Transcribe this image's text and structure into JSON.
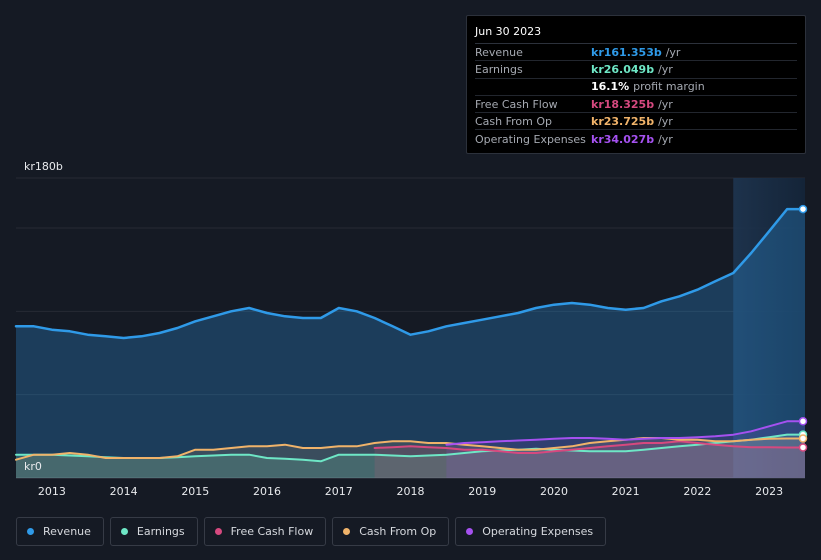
{
  "tooltip": {
    "date": "Jun 30 2023",
    "rows": [
      {
        "label": "Revenue",
        "value": "kr161.353b",
        "unit": "/yr",
        "color": "#2f9ae8"
      },
      {
        "label": "Earnings",
        "value": "kr26.049b",
        "unit": "/yr",
        "color": "#6ee7c6"
      },
      {
        "label": "",
        "value": "16.1%",
        "unit": "profit margin",
        "color": "#ffffff"
      },
      {
        "label": "Free Cash Flow",
        "value": "kr18.325b",
        "unit": "/yr",
        "color": "#d6497f"
      },
      {
        "label": "Cash From Op",
        "value": "kr23.725b",
        "unit": "/yr",
        "color": "#f0b36a"
      },
      {
        "label": "Operating Expenses",
        "value": "kr34.027b",
        "unit": "/yr",
        "color": "#a551f0"
      }
    ]
  },
  "axis": {
    "y_top_label": "kr180b",
    "y_bottom_label": "kr0"
  },
  "legend": [
    {
      "label": "Revenue",
      "color": "#2f9ae8"
    },
    {
      "label": "Earnings",
      "color": "#6ee7c6"
    },
    {
      "label": "Free Cash Flow",
      "color": "#d6497f"
    },
    {
      "label": "Cash From Op",
      "color": "#f0b36a"
    },
    {
      "label": "Operating Expenses",
      "color": "#a551f0"
    }
  ],
  "chart_data": {
    "type": "area",
    "title": "",
    "xlabel": "",
    "ylabel": "",
    "ylim": [
      0,
      180
    ],
    "xlim": [
      2012.5,
      2023.5
    ],
    "highlight_range": [
      2022.5,
      2023.5
    ],
    "x_ticks": [
      "2013",
      "2014",
      "2015",
      "2016",
      "2017",
      "2018",
      "2019",
      "2020",
      "2021",
      "2022",
      "2023"
    ],
    "series": [
      {
        "name": "Revenue",
        "color": "#2f9ae8",
        "points": [
          [
            2012.5,
            91
          ],
          [
            2012.75,
            91
          ],
          [
            2013,
            89
          ],
          [
            2013.25,
            88
          ],
          [
            2013.5,
            86
          ],
          [
            2013.75,
            85
          ],
          [
            2014,
            84
          ],
          [
            2014.25,
            85
          ],
          [
            2014.5,
            87
          ],
          [
            2014.75,
            90
          ],
          [
            2015,
            94
          ],
          [
            2015.25,
            97
          ],
          [
            2015.5,
            100
          ],
          [
            2015.75,
            102
          ],
          [
            2016,
            99
          ],
          [
            2016.25,
            97
          ],
          [
            2016.5,
            96
          ],
          [
            2016.75,
            96
          ],
          [
            2017,
            102
          ],
          [
            2017.25,
            100
          ],
          [
            2017.5,
            96
          ],
          [
            2017.75,
            91
          ],
          [
            2018,
            86
          ],
          [
            2018.25,
            88
          ],
          [
            2018.5,
            91
          ],
          [
            2018.75,
            93
          ],
          [
            2019,
            95
          ],
          [
            2019.25,
            97
          ],
          [
            2019.5,
            99
          ],
          [
            2019.75,
            102
          ],
          [
            2020,
            104
          ],
          [
            2020.25,
            105
          ],
          [
            2020.5,
            104
          ],
          [
            2020.75,
            102
          ],
          [
            2021,
            101
          ],
          [
            2021.25,
            102
          ],
          [
            2021.5,
            106
          ],
          [
            2021.75,
            109
          ],
          [
            2022,
            113
          ],
          [
            2022.25,
            118
          ],
          [
            2022.5,
            123
          ],
          [
            2022.75,
            135
          ],
          [
            2023,
            148
          ],
          [
            2023.25,
            161.353
          ]
        ]
      },
      {
        "name": "Earnings",
        "color": "#6ee7c6",
        "points": [
          [
            2012.5,
            14
          ],
          [
            2012.75,
            14
          ],
          [
            2013,
            14
          ],
          [
            2013.25,
            13.5
          ],
          [
            2013.5,
            13
          ],
          [
            2013.75,
            12.5
          ],
          [
            2014,
            12
          ],
          [
            2014.25,
            12
          ],
          [
            2014.5,
            12
          ],
          [
            2014.75,
            12.5
          ],
          [
            2015,
            13
          ],
          [
            2015.25,
            13.5
          ],
          [
            2015.5,
            14
          ],
          [
            2015.75,
            14
          ],
          [
            2016,
            12
          ],
          [
            2016.25,
            11.5
          ],
          [
            2016.5,
            11
          ],
          [
            2016.75,
            10
          ],
          [
            2017,
            14
          ],
          [
            2017.25,
            14
          ],
          [
            2017.5,
            14
          ],
          [
            2017.75,
            13.5
          ],
          [
            2018,
            13
          ],
          [
            2018.25,
            13.5
          ],
          [
            2018.5,
            14
          ],
          [
            2018.75,
            15
          ],
          [
            2019,
            16
          ],
          [
            2019.25,
            16.5
          ],
          [
            2019.5,
            17
          ],
          [
            2019.75,
            17.5
          ],
          [
            2020,
            17
          ],
          [
            2020.25,
            16.5
          ],
          [
            2020.5,
            16
          ],
          [
            2020.75,
            16
          ],
          [
            2021,
            16
          ],
          [
            2021.25,
            17
          ],
          [
            2021.5,
            18
          ],
          [
            2021.75,
            19
          ],
          [
            2022,
            20
          ],
          [
            2022.25,
            21
          ],
          [
            2022.5,
            22
          ],
          [
            2022.75,
            23
          ],
          [
            2023,
            24.5
          ],
          [
            2023.25,
            26.049
          ]
        ]
      },
      {
        "name": "Free Cash Flow",
        "color": "#d6497f",
        "points": [
          [
            2017.5,
            18
          ],
          [
            2017.75,
            18.5
          ],
          [
            2018,
            19
          ],
          [
            2018.25,
            18.5
          ],
          [
            2018.5,
            18
          ],
          [
            2018.75,
            17
          ],
          [
            2019,
            17
          ],
          [
            2019.25,
            16
          ],
          [
            2019.5,
            15
          ],
          [
            2019.75,
            15
          ],
          [
            2020,
            16
          ],
          [
            2020.25,
            17
          ],
          [
            2020.5,
            18
          ],
          [
            2020.75,
            19
          ],
          [
            2021,
            20
          ],
          [
            2021.25,
            21
          ],
          [
            2021.5,
            21
          ],
          [
            2021.75,
            22
          ],
          [
            2022,
            21
          ],
          [
            2022.25,
            20
          ],
          [
            2022.5,
            19
          ],
          [
            2022.75,
            18.5
          ],
          [
            2023,
            18.5
          ],
          [
            2023.25,
            18.325
          ]
        ]
      },
      {
        "name": "Cash From Op",
        "color": "#f0b36a",
        "points": [
          [
            2012.5,
            11
          ],
          [
            2012.75,
            14
          ],
          [
            2013,
            14
          ],
          [
            2013.25,
            15
          ],
          [
            2013.5,
            14
          ],
          [
            2013.75,
            12
          ],
          [
            2014,
            12
          ],
          [
            2014.25,
            12
          ],
          [
            2014.5,
            12
          ],
          [
            2014.75,
            13
          ],
          [
            2015,
            17
          ],
          [
            2015.25,
            17
          ],
          [
            2015.5,
            18
          ],
          [
            2015.75,
            19
          ],
          [
            2016,
            19
          ],
          [
            2016.25,
            20
          ],
          [
            2016.5,
            18
          ],
          [
            2016.75,
            18
          ],
          [
            2017,
            19
          ],
          [
            2017.25,
            19
          ],
          [
            2017.5,
            21
          ],
          [
            2017.75,
            22
          ],
          [
            2018,
            22
          ],
          [
            2018.25,
            21
          ],
          [
            2018.5,
            21
          ],
          [
            2018.75,
            20
          ],
          [
            2019,
            19
          ],
          [
            2019.25,
            18
          ],
          [
            2019.5,
            17
          ],
          [
            2019.75,
            17
          ],
          [
            2020,
            18
          ],
          [
            2020.25,
            19
          ],
          [
            2020.5,
            21
          ],
          [
            2020.75,
            22
          ],
          [
            2021,
            23
          ],
          [
            2021.25,
            24
          ],
          [
            2021.5,
            24
          ],
          [
            2021.75,
            23
          ],
          [
            2022,
            23
          ],
          [
            2022.25,
            22
          ],
          [
            2022.5,
            22
          ],
          [
            2022.75,
            23
          ],
          [
            2023,
            23.5
          ],
          [
            2023.25,
            23.725
          ]
        ]
      },
      {
        "name": "Operating Expenses",
        "color": "#a551f0",
        "points": [
          [
            2018.5,
            20
          ],
          [
            2018.75,
            21
          ],
          [
            2019,
            21.5
          ],
          [
            2019.25,
            22
          ],
          [
            2019.5,
            22.5
          ],
          [
            2019.75,
            23
          ],
          [
            2020,
            23.5
          ],
          [
            2020.25,
            24
          ],
          [
            2020.5,
            24
          ],
          [
            2020.75,
            23.5
          ],
          [
            2021,
            23
          ],
          [
            2021.25,
            23.5
          ],
          [
            2021.5,
            24
          ],
          [
            2021.75,
            24
          ],
          [
            2022,
            24.5
          ],
          [
            2022.25,
            25
          ],
          [
            2022.5,
            26
          ],
          [
            2022.75,
            28
          ],
          [
            2023,
            31
          ],
          [
            2023.25,
            34.027
          ]
        ]
      }
    ]
  }
}
